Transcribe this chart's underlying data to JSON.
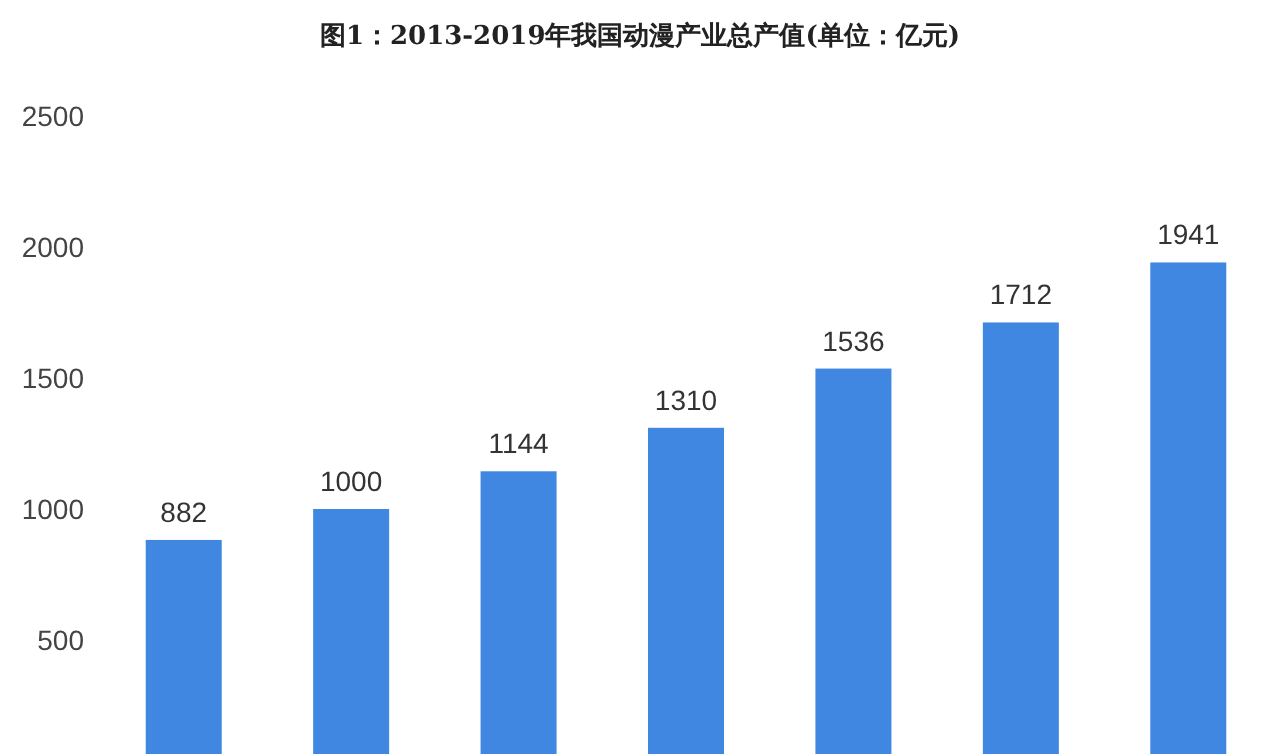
{
  "chart_data": {
    "type": "bar",
    "title": "图1：2013-2019年我国动漫产业总产值(单位：亿元)",
    "categories": [
      null,
      null,
      null,
      null,
      null,
      null,
      null
    ],
    "values": [
      882,
      1000,
      1144,
      1310,
      1536,
      1712,
      1941
    ],
    "color": "#3f87e0",
    "ylim": [
      65,
      2500
    ],
    "yticks": [
      500,
      1000,
      1500,
      2000,
      2500
    ],
    "data_labels": true,
    "grid": false
  }
}
